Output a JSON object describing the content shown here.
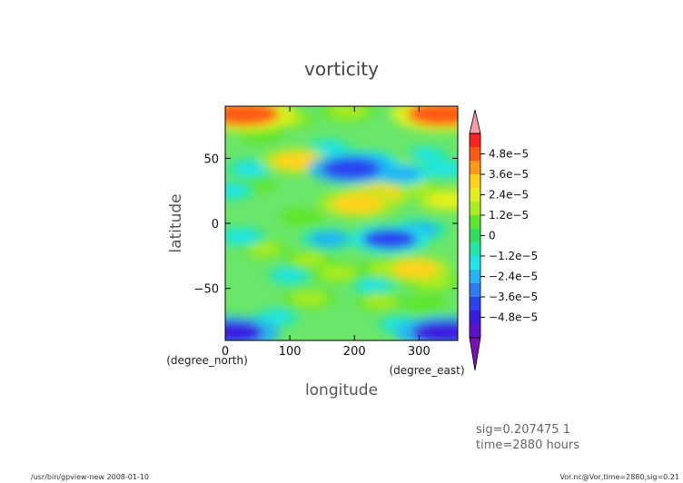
{
  "chart_data": {
    "type": "heatmap",
    "title": "vorticity",
    "xlabel": "longitude",
    "ylabel": "latitude",
    "x_units": "(degree_east)",
    "y_units": "(degree_north)",
    "xlim": [
      0,
      360
    ],
    "ylim": [
      -90,
      90
    ],
    "x_ticks": [
      0,
      100,
      200,
      300
    ],
    "x_tick_labels": [
      "0",
      "100",
      "200",
      "300"
    ],
    "y_ticks": [
      50,
      0,
      -50
    ],
    "y_tick_labels": [
      "50",
      "0",
      "−50"
    ],
    "colorbar": {
      "levels": [
        4.8e-05,
        3.6e-05,
        2.4e-05,
        1.2e-05,
        0,
        -1.2e-05,
        -2.4e-05,
        -3.6e-05,
        -4.8e-05
      ],
      "tick_labels": [
        "4.8e−5",
        "3.6e−5",
        "2.4e−5",
        "1.2e−5",
        "0",
        "−1.2e−5",
        "−2.4e−5",
        "−3.6e−5",
        "−4.8e−5"
      ],
      "colors_top_to_bottom": [
        "#ff2020",
        "#ff5a14",
        "#ff9a18",
        "#ffd21e",
        "#e4f01e",
        "#a8ec22",
        "#5ee62c",
        "#2ee05c",
        "#22e6a8",
        "#22e4e4",
        "#22b4f4",
        "#2c7cf4",
        "#2c42f0",
        "#3a1ce0",
        "#5e12c8"
      ],
      "over_color": "#f59ca4",
      "under_color": "#7a10b8"
    },
    "features": [
      {
        "kind": "positive",
        "lon": 30,
        "lat": 84,
        "value": 5e-05
      },
      {
        "kind": "positive",
        "lon": 335,
        "lat": 84,
        "value": 5e-05
      },
      {
        "kind": "positive",
        "lon": 190,
        "lat": 86,
        "value": 2e-05
      },
      {
        "kind": "positive",
        "lon": 100,
        "lat": 80,
        "value": 1.5e-05
      },
      {
        "kind": "positive",
        "lon": 55,
        "lat": 68,
        "value": 1.2e-05
      },
      {
        "kind": "positive",
        "lon": 110,
        "lat": 48,
        "value": 3e-05
      },
      {
        "kind": "positive",
        "lon": 265,
        "lat": 45,
        "value": 1.8e-05
      },
      {
        "kind": "positive",
        "lon": 45,
        "lat": 30,
        "value": 1.2e-05
      },
      {
        "kind": "positive",
        "lon": 295,
        "lat": 28,
        "value": 1.5e-05
      },
      {
        "kind": "positive",
        "lon": 235,
        "lat": 22,
        "value": 3e-05
      },
      {
        "kind": "positive",
        "lon": 205,
        "lat": 15,
        "value": 3.5e-05
      },
      {
        "kind": "positive",
        "lon": 345,
        "lat": 18,
        "value": 2.4e-05
      },
      {
        "kind": "positive",
        "lon": 120,
        "lat": 5,
        "value": 1.2e-05
      },
      {
        "kind": "positive",
        "lon": 265,
        "lat": -5,
        "value": 1.2e-05
      },
      {
        "kind": "positive",
        "lon": 60,
        "lat": -20,
        "value": 1.5e-05
      },
      {
        "kind": "positive",
        "lon": 130,
        "lat": -28,
        "value": 1.5e-05
      },
      {
        "kind": "positive",
        "lon": 175,
        "lat": -38,
        "value": 2e-05
      },
      {
        "kind": "positive",
        "lon": 250,
        "lat": -35,
        "value": 1.8e-05
      },
      {
        "kind": "positive",
        "lon": 295,
        "lat": -35,
        "value": 3e-05
      },
      {
        "kind": "positive",
        "lon": 320,
        "lat": -45,
        "value": 2e-05
      },
      {
        "kind": "positive",
        "lon": 130,
        "lat": -58,
        "value": 1.8e-05
      },
      {
        "kind": "positive",
        "lon": 240,
        "lat": -60,
        "value": 1.5e-05
      },
      {
        "kind": "positive",
        "lon": 310,
        "lat": -62,
        "value": 1.2e-05
      },
      {
        "kind": "negative",
        "lon": 195,
        "lat": 42,
        "value": -4e-05
      },
      {
        "kind": "negative",
        "lon": 215,
        "lat": 46,
        "value": -3e-05
      },
      {
        "kind": "negative",
        "lon": 270,
        "lat": 38,
        "value": -2.4e-05
      },
      {
        "kind": "negative",
        "lon": 160,
        "lat": 58,
        "value": -1.2e-05
      },
      {
        "kind": "negative",
        "lon": 310,
        "lat": 52,
        "value": -1.2e-05
      },
      {
        "kind": "negative",
        "lon": 40,
        "lat": 42,
        "value": -1.5e-05
      },
      {
        "kind": "negative",
        "lon": 340,
        "lat": 42,
        "value": -1.5e-05
      },
      {
        "kind": "negative",
        "lon": 10,
        "lat": 25,
        "value": -1.2e-05
      },
      {
        "kind": "negative",
        "lon": 25,
        "lat": -10,
        "value": -1.5e-05
      },
      {
        "kind": "negative",
        "lon": 160,
        "lat": -12,
        "value": -2e-05
      },
      {
        "kind": "negative",
        "lon": 255,
        "lat": -12,
        "value": -3.6e-05
      },
      {
        "kind": "negative",
        "lon": 300,
        "lat": -5,
        "value": -2e-05
      },
      {
        "kind": "negative",
        "lon": 100,
        "lat": -40,
        "value": -1.2e-05
      },
      {
        "kind": "negative",
        "lon": 230,
        "lat": -48,
        "value": -1.2e-05
      },
      {
        "kind": "negative",
        "lon": 80,
        "lat": -72,
        "value": -1.2e-05
      },
      {
        "kind": "negative",
        "lon": 270,
        "lat": -78,
        "value": -1.2e-05
      },
      {
        "kind": "negative",
        "lon": 8,
        "lat": -84,
        "value": -4.8e-05
      },
      {
        "kind": "negative",
        "lon": 340,
        "lat": -84,
        "value": -4.8e-05
      }
    ]
  },
  "info": {
    "line1": "sig=0.207475  1",
    "line2": "time=2880  hours"
  },
  "footer": {
    "left": "/usr/bin/gpview-new  2008-01-10",
    "right": "Vor.nc@Vor,time=2880,sig=0.21"
  }
}
